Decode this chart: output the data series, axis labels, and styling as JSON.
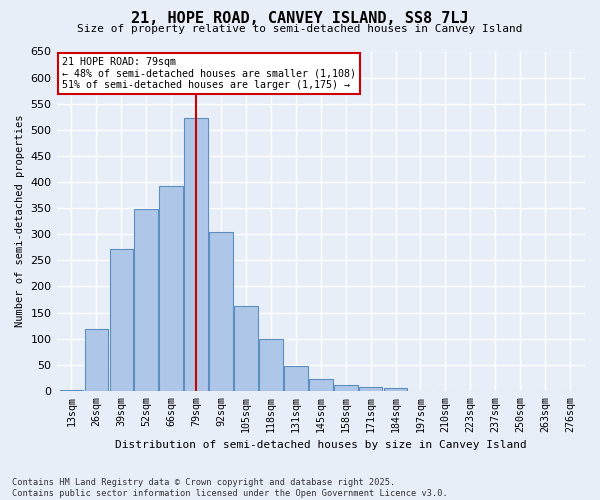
{
  "title": "21, HOPE ROAD, CANVEY ISLAND, SS8 7LJ",
  "subtitle": "Size of property relative to semi-detached houses in Canvey Island",
  "xlabel": "Distribution of semi-detached houses by size in Canvey Island",
  "ylabel": "Number of semi-detached properties",
  "footnote": "Contains HM Land Registry data © Crown copyright and database right 2025.\nContains public sector information licensed under the Open Government Licence v3.0.",
  "bins": [
    "13sqm",
    "26sqm",
    "39sqm",
    "52sqm",
    "66sqm",
    "79sqm",
    "92sqm",
    "105sqm",
    "118sqm",
    "131sqm",
    "145sqm",
    "158sqm",
    "171sqm",
    "184sqm",
    "197sqm",
    "210sqm",
    "223sqm",
    "237sqm",
    "250sqm",
    "263sqm",
    "276sqm"
  ],
  "values": [
    2,
    118,
    272,
    348,
    393,
    523,
    305,
    163,
    100,
    48,
    22,
    11,
    8,
    5,
    0,
    0,
    0,
    0,
    0,
    0,
    0
  ],
  "bar_color": "#aec6e8",
  "bar_edge_color": "#5a8fc0",
  "property_bin_index": 5,
  "annotation_title": "21 HOPE ROAD: 79sqm",
  "annotation_line1": "← 48% of semi-detached houses are smaller (1,108)",
  "annotation_line2": "51% of semi-detached houses are larger (1,175) →",
  "vline_color": "#cc0000",
  "annotation_box_color": "#cc0000",
  "ylim": [
    0,
    650
  ],
  "yticks": [
    0,
    50,
    100,
    150,
    200,
    250,
    300,
    350,
    400,
    450,
    500,
    550,
    600,
    650
  ],
  "background_color": "#e8eef8",
  "grid_color": "#ffffff"
}
